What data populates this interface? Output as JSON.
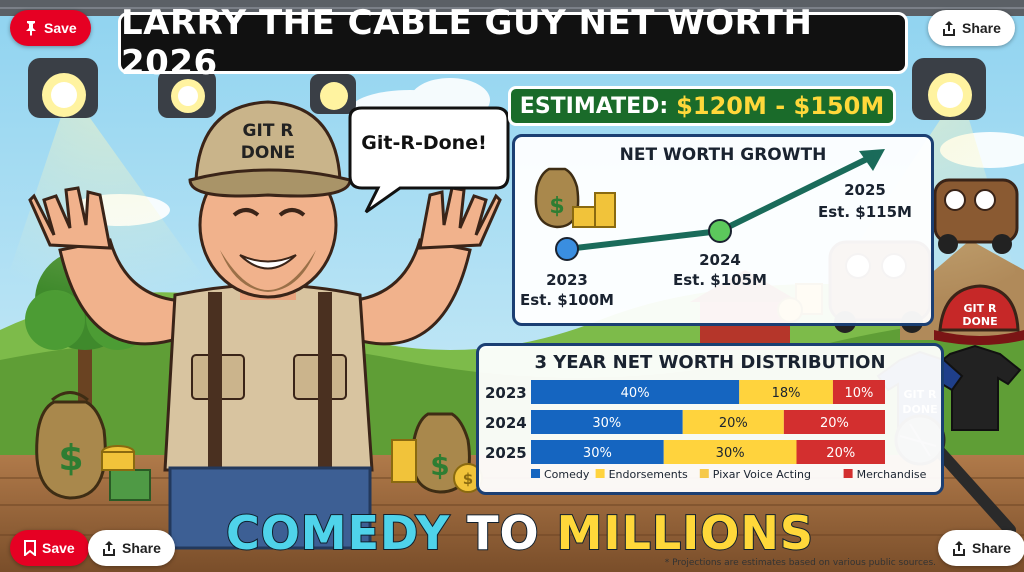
{
  "buttons": {
    "save_label": "Save",
    "share_label": "Share"
  },
  "headline": {
    "title": "LARRY THE CABLE GUY NET WORTH 2026",
    "estimate_label": "ESTIMATED:",
    "estimate_value": "$120M - $150M"
  },
  "speech_bubble": "Git-R-Done!",
  "hat_text": [
    "GIT R",
    "DONE"
  ],
  "merch_text": [
    "GIT R",
    "DONE"
  ],
  "growth": {
    "title": "NET WORTH GROWTH",
    "points": [
      {
        "year": "2023",
        "label": "Est. $100M",
        "value": 100
      },
      {
        "year": "2024",
        "label": "Est. $105M",
        "value": 105
      },
      {
        "year": "2025",
        "label": "Est. $115M",
        "value": 115
      }
    ],
    "colors": {
      "line": "#1a6b5a",
      "p2023": "#3a8ee0",
      "p2024": "#5cc85c"
    }
  },
  "chart_data": {
    "type": "bar",
    "title": "3 YEAR NET WORTH DISTRIBUTION",
    "categories": [
      "2023",
      "2024",
      "2025"
    ],
    "series": [
      {
        "name": "Comedy",
        "values": [
          40,
          30,
          30
        ],
        "color": "#1565c0"
      },
      {
        "name": "Endorsements",
        "values": [
          18,
          20,
          30
        ],
        "color": "#ffd33d"
      },
      {
        "name": "Pixar Voice Acting",
        "values": [
          0,
          0,
          0
        ],
        "color": "#f6c94a"
      },
      {
        "name": "Merchandise",
        "values": [
          10,
          20,
          20
        ],
        "color": "#d32f2f"
      }
    ],
    "value_labels": [
      [
        "40%",
        "18%",
        "10%"
      ],
      [
        "30%",
        "20%",
        "20%"
      ],
      [
        "30%",
        "30%",
        "20%"
      ]
    ],
    "legend_position": "bottom"
  },
  "tagline": {
    "part1": "COMEDY",
    "part2": "TO",
    "part3": "MILLIONS"
  },
  "footnote": "* Projections are estimates based on various public sources.",
  "icons": [
    "pin-icon",
    "share-icon",
    "bookmark-icon",
    "money-bag-icon",
    "coin-stack-icon",
    "stage-light-icon",
    "microphone-icon",
    "tow-truck-icon",
    "cap-icon",
    "tshirt-icon",
    "arrow-icon"
  ]
}
